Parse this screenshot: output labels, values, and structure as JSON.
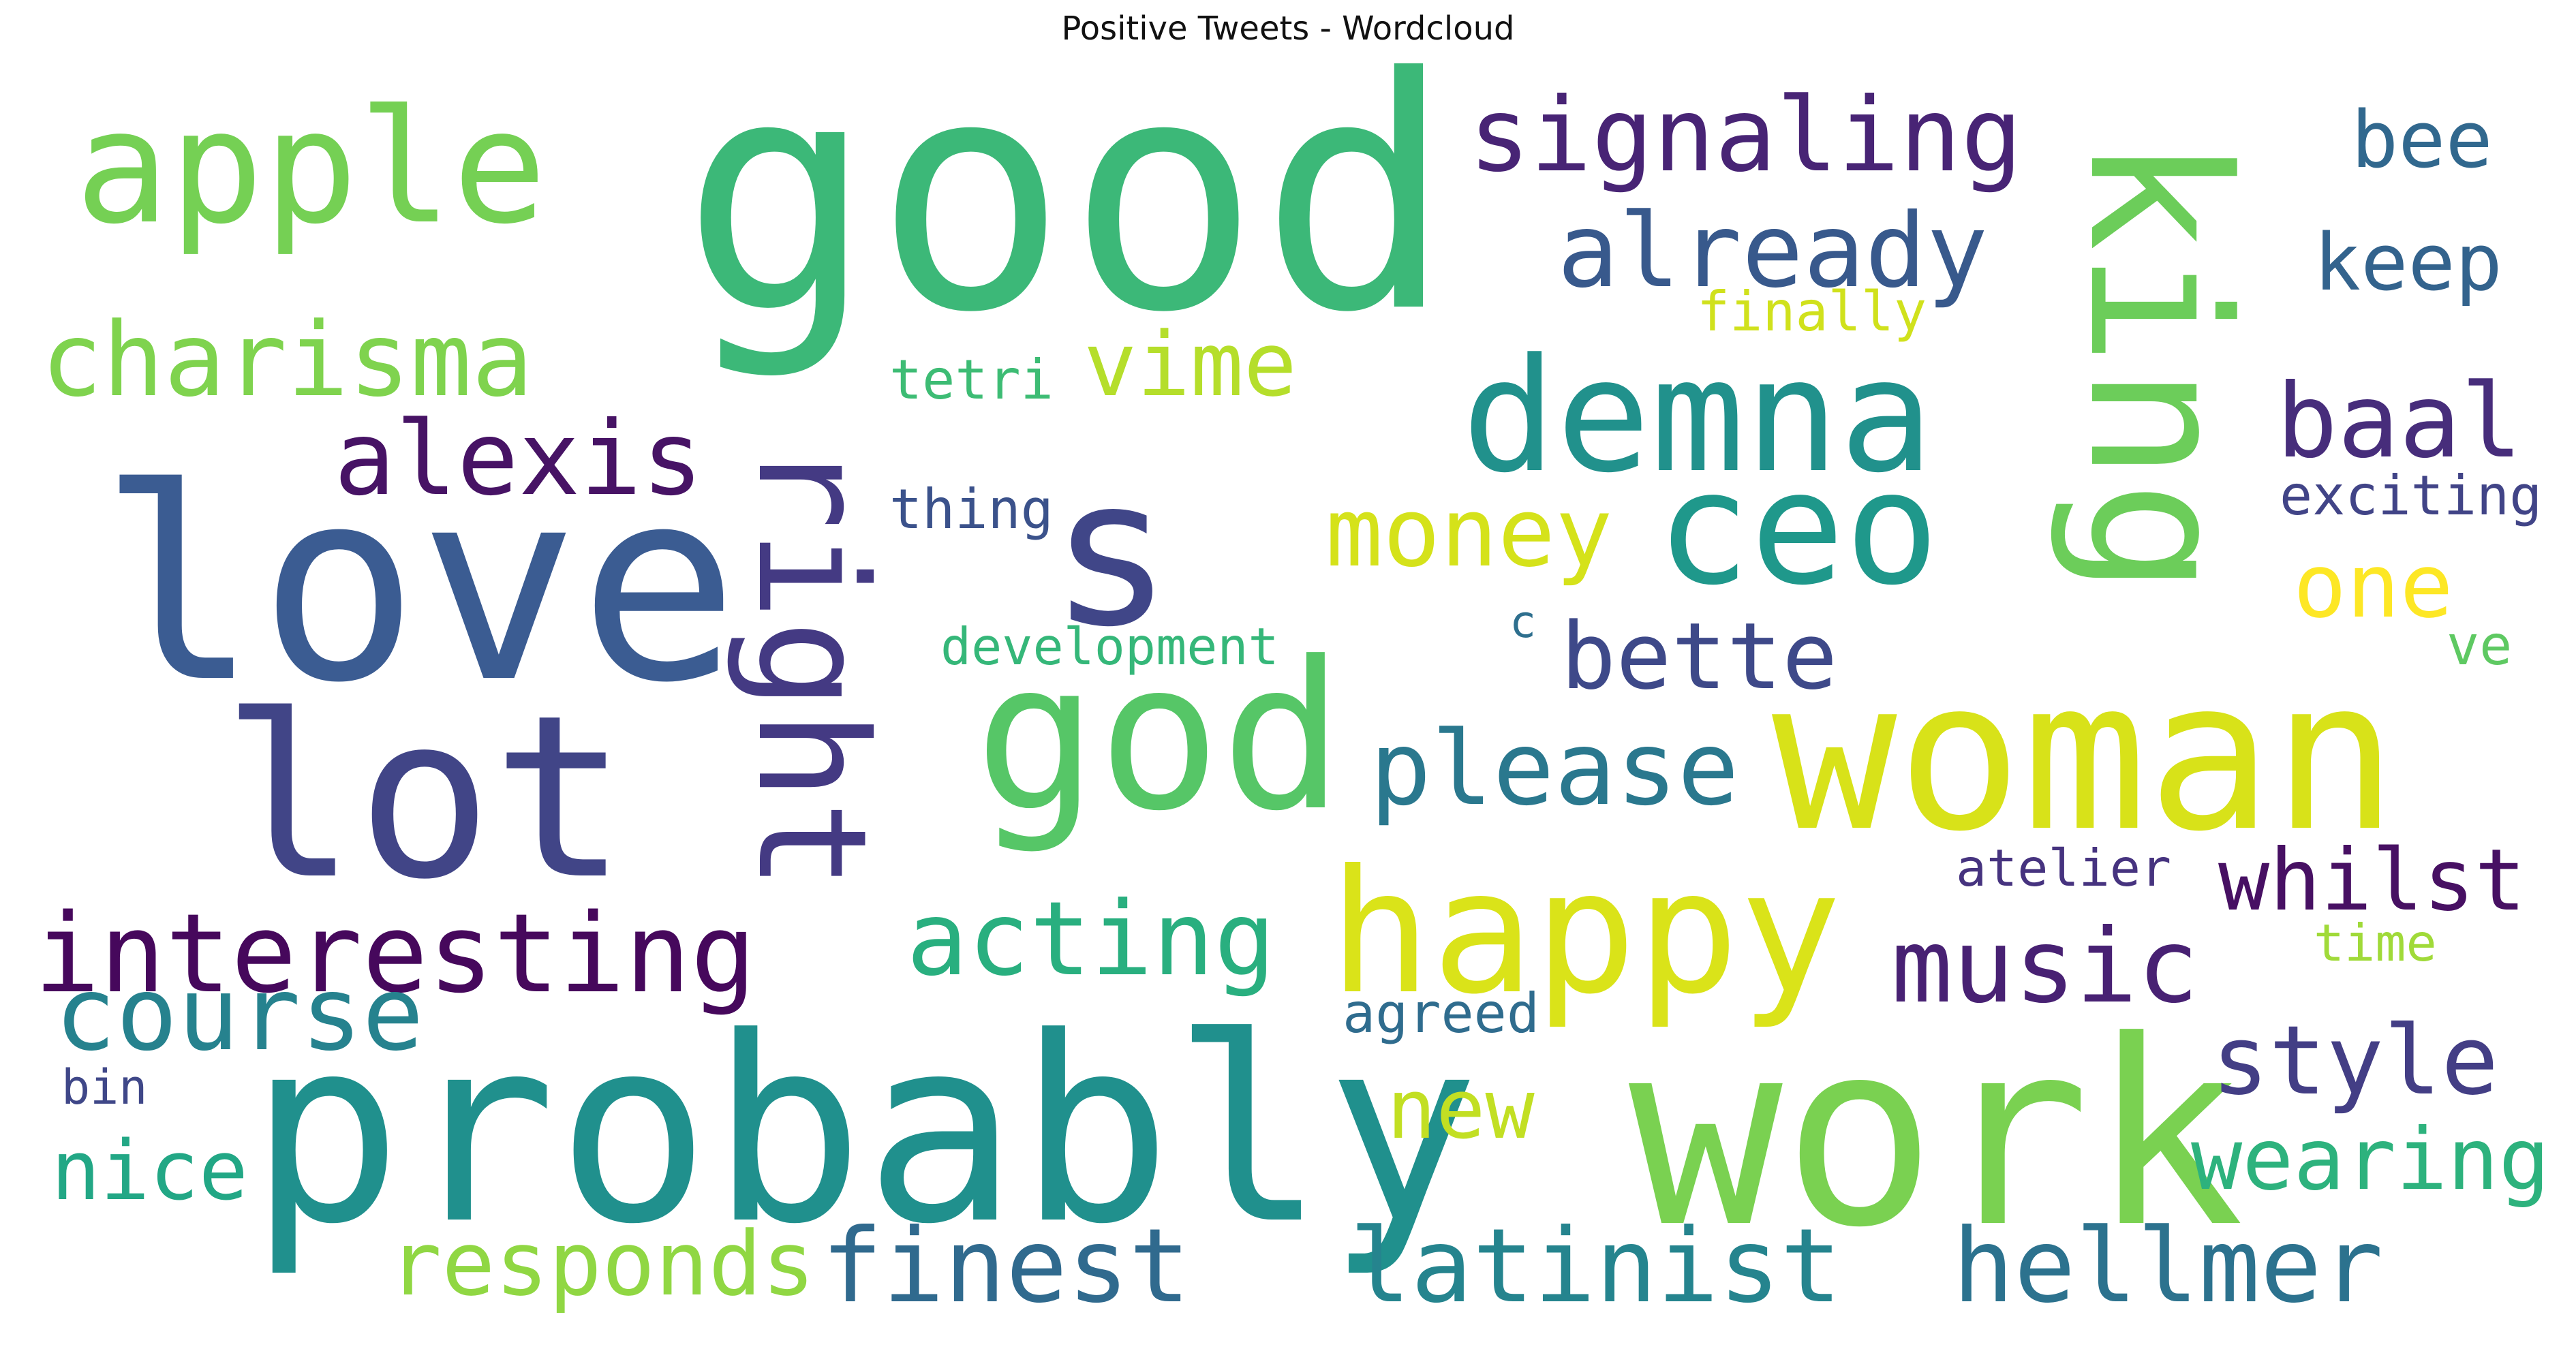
{
  "title": "Positive Tweets - Wordcloud",
  "words": [
    {
      "text": "good",
      "color": "#3cb878"
    },
    {
      "text": "love",
      "color": "#3b5c92"
    },
    {
      "text": "probably",
      "color": "#20908d"
    },
    {
      "text": "work",
      "color": "#7ad151"
    },
    {
      "text": "woman",
      "color": "#d8e219"
    },
    {
      "text": "lot",
      "color": "#414587"
    },
    {
      "text": "god",
      "color": "#56c667"
    },
    {
      "text": "king",
      "color": "#6ccd5a"
    },
    {
      "text": "s",
      "color": "#404688"
    },
    {
      "text": "happy",
      "color": "#dae319"
    },
    {
      "text": "right",
      "color": "#443a83"
    },
    {
      "text": "apple",
      "color": "#75d054"
    },
    {
      "text": "demna",
      "color": "#21918c"
    },
    {
      "text": "ceo",
      "color": "#1f988b"
    },
    {
      "text": "signaling",
      "color": "#482475"
    },
    {
      "text": "already",
      "color": "#38598c"
    },
    {
      "text": "charisma",
      "color": "#7fd34e"
    },
    {
      "text": "alexis",
      "color": "#471365"
    },
    {
      "text": "interesting",
      "color": "#46085c"
    },
    {
      "text": "acting",
      "color": "#29af7f"
    },
    {
      "text": "course",
      "color": "#26828e"
    },
    {
      "text": "please",
      "color": "#2a788e"
    },
    {
      "text": "music",
      "color": "#482173"
    },
    {
      "text": "finest",
      "color": "#306a8e"
    },
    {
      "text": "latinist",
      "color": "#25848e"
    },
    {
      "text": "hellmer",
      "color": "#2c728e"
    },
    {
      "text": "responds",
      "color": "#90d743"
    },
    {
      "text": "style",
      "color": "#433e85"
    },
    {
      "text": "wearing",
      "color": "#2db27d"
    },
    {
      "text": "nice",
      "color": "#22a785"
    },
    {
      "text": "new",
      "color": "#c2df23"
    },
    {
      "text": "money",
      "color": "#d5e21a"
    },
    {
      "text": "vime",
      "color": "#b5de2b"
    },
    {
      "text": "bette",
      "color": "#3e4989"
    },
    {
      "text": "baal",
      "color": "#472d7b"
    },
    {
      "text": "one",
      "color": "#fde725"
    },
    {
      "text": "whilst",
      "color": "#471063"
    },
    {
      "text": "bee",
      "color": "#31688e"
    },
    {
      "text": "keep",
      "color": "#33638d"
    },
    {
      "text": "finally",
      "color": "#d0e11c"
    },
    {
      "text": "tetri",
      "color": "#3dbc74"
    },
    {
      "text": "thing",
      "color": "#3b528b"
    },
    {
      "text": "development",
      "color": "#35b779"
    },
    {
      "text": "c",
      "color": "#2e6f8e"
    },
    {
      "text": "exciting",
      "color": "#414487"
    },
    {
      "text": "ve",
      "color": "#5ec962"
    },
    {
      "text": "atelier",
      "color": "#46337f"
    },
    {
      "text": "time",
      "color": "#a0da39"
    },
    {
      "text": "agreed",
      "color": "#2f6c8e"
    },
    {
      "text": "bin",
      "color": "#3f4788"
    }
  ]
}
